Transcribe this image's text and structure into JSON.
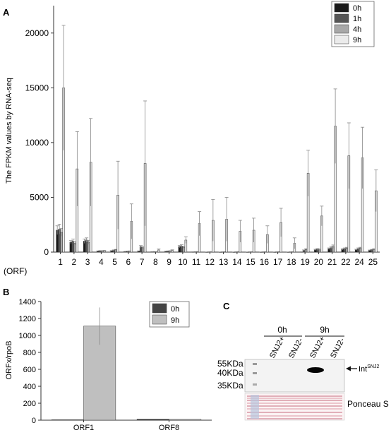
{
  "chart_data": [
    {
      "panel": "A",
      "type": "bar",
      "ylabel": "The FPKM values by RNA-seq",
      "xaxis_title": "(ORF)",
      "categories": [
        "1",
        "2",
        "3",
        "4",
        "5",
        "6",
        "7",
        "8",
        "9",
        "10",
        "11",
        "12",
        "13",
        "14",
        "15",
        "16",
        "17",
        "18",
        "19",
        "20",
        "21",
        "22",
        "24",
        "25"
      ],
      "ylim": [
        0,
        22500
      ],
      "yticks": [
        0,
        5000,
        10000,
        15000,
        20000
      ],
      "legend": "top-right",
      "series": [
        {
          "name": "0h",
          "color": "#1a1a1a",
          "values": [
            2000,
            900,
            1000,
            80,
            100,
            40,
            80,
            30,
            60,
            500,
            20,
            10,
            10,
            10,
            10,
            10,
            10,
            10,
            20,
            200,
            300,
            250,
            200,
            150
          ],
          "errors": [
            400,
            150,
            200,
            30,
            40,
            20,
            30,
            10,
            20,
            100,
            10,
            5,
            5,
            5,
            5,
            5,
            5,
            5,
            10,
            60,
            80,
            60,
            60,
            40
          ]
        },
        {
          "name": "1h",
          "color": "#555555",
          "values": [
            2100,
            1000,
            1100,
            100,
            150,
            60,
            500,
            40,
            80,
            550,
            30,
            20,
            20,
            20,
            20,
            20,
            20,
            20,
            150,
            250,
            400,
            300,
            300,
            200
          ],
          "errors": [
            450,
            200,
            200,
            40,
            50,
            30,
            100,
            10,
            30,
            120,
            10,
            10,
            10,
            10,
            10,
            10,
            10,
            10,
            50,
            80,
            120,
            80,
            80,
            50
          ]
        },
        {
          "name": "4h",
          "color": "#a8a8a8",
          "values": [
            1800,
            800,
            900,
            90,
            200,
            80,
            400,
            30,
            100,
            450,
            40,
            30,
            30,
            30,
            30,
            30,
            30,
            30,
            250,
            200,
            500,
            350,
            350,
            250
          ],
          "errors": [
            350,
            150,
            180,
            30,
            50,
            30,
            80,
            10,
            30,
            100,
            10,
            10,
            10,
            10,
            10,
            10,
            10,
            10,
            60,
            70,
            150,
            90,
            90,
            60
          ]
        },
        {
          "name": "9h",
          "color": "#ebebeb",
          "values": [
            15000,
            7600,
            8200,
            100,
            5200,
            2800,
            8100,
            200,
            150,
            1100,
            2600,
            2900,
            3000,
            1900,
            2000,
            1600,
            2700,
            800,
            7200,
            3300,
            11500,
            8800,
            8600,
            5600
          ],
          "errors": [
            5700,
            3400,
            4000,
            60,
            3100,
            1600,
            5700,
            80,
            60,
            300,
            1100,
            1900,
            2000,
            1000,
            1100,
            800,
            1300,
            500,
            2100,
            900,
            3400,
            3000,
            2800,
            1900
          ]
        }
      ]
    },
    {
      "panel": "B",
      "type": "bar",
      "ylabel": "ORFx/rpoB",
      "categories": [
        "ORF1",
        "ORF8"
      ],
      "ylim": [
        0,
        1400
      ],
      "yticks": [
        0,
        200,
        400,
        600,
        800,
        1000,
        1200,
        1400
      ],
      "legend": "top-right",
      "series": [
        {
          "name": "0h",
          "color": "#444444",
          "values": [
            5,
            12
          ],
          "errors": [
            0,
            0
          ]
        },
        {
          "name": "9h",
          "color": "#bfbfbf",
          "values": [
            1110,
            10
          ],
          "errors": [
            220,
            0
          ]
        }
      ]
    }
  ],
  "panel_c": {
    "label": "C",
    "time_labels": [
      "0h",
      "9h"
    ],
    "lane_labels": [
      "SNJ2+",
      "SNJ2-",
      "SNJ2+",
      "SNJ2-"
    ],
    "markers": [
      "55KDa",
      "40KDa",
      "35KDa"
    ],
    "band_label_main": "Int",
    "band_label_sup": "SNJ2",
    "ponceau_label": "Ponceau S"
  }
}
